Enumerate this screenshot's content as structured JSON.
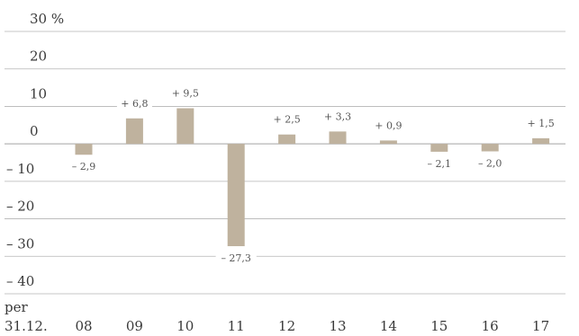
{
  "chart_data": {
    "type": "bar",
    "categories": [
      "08",
      "09",
      "10",
      "11",
      "12",
      "13",
      "14",
      "15",
      "16",
      "17"
    ],
    "values": [
      -2.9,
      6.8,
      9.5,
      -27.3,
      2.5,
      3.3,
      0.9,
      -2.1,
      -2.0,
      1.5
    ],
    "data_labels": [
      "– 2,9",
      "+ 6,8",
      "+ 9,5",
      "– 27,3",
      "+ 2,5",
      "+ 3,3",
      "+ 0,9",
      "– 2,1",
      "– 2,0",
      "+ 1,5"
    ],
    "y_ticks": [
      30,
      20,
      10,
      0,
      -10,
      -20,
      -30,
      -40
    ],
    "y_tick_labels": [
      "30 %",
      "20",
      "10",
      "0",
      "–  10",
      "–  20",
      "–  30",
      "–  40"
    ],
    "x_prefix_lines": [
      "per",
      "31.12."
    ],
    "ylim": [
      -40,
      30
    ],
    "grid": true,
    "colors": {
      "bar": "#bfb29e",
      "grid": "#b5b5b5",
      "text": "#3a3a3a"
    }
  }
}
